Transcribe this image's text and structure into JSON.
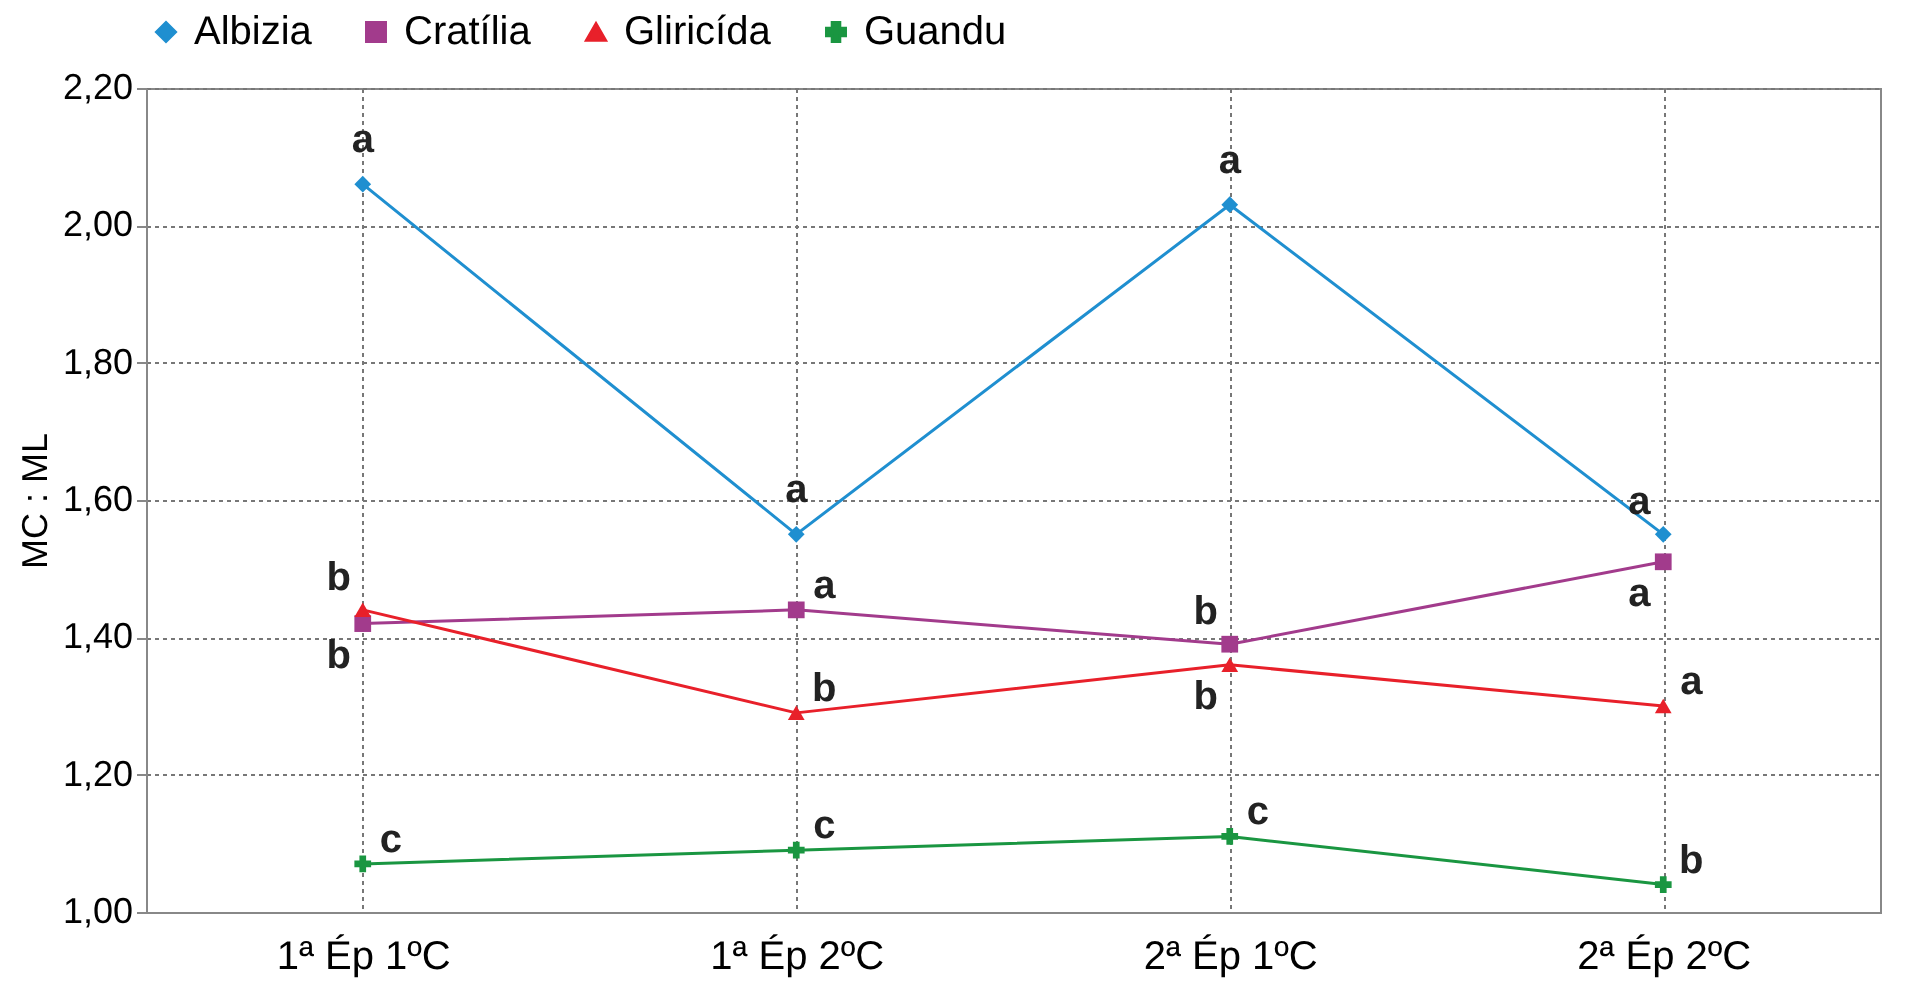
{
  "chart_data": {
    "type": "line",
    "ylabel": "MC : ML",
    "categories": [
      "1ª Ép 1ºC",
      "1ª Ép  2ºC",
      "2ª Ép  1ºC",
      "2ª Ép  2ºC"
    ],
    "series": [
      {
        "name": "Albizia",
        "color": "#1f8fd0",
        "marker": "diamond",
        "values": [
          2.06,
          1.55,
          2.03,
          1.55
        ]
      },
      {
        "name": "Cratília",
        "color": "#a23b8c",
        "marker": "square",
        "values": [
          1.42,
          1.44,
          1.39,
          1.51
        ]
      },
      {
        "name": "Gliricída",
        "color": "#e8202a",
        "marker": "triangle",
        "values": [
          1.44,
          1.29,
          1.36,
          1.3
        ]
      },
      {
        "name": "Guandu",
        "color": "#1a9641",
        "marker": "cross",
        "values": [
          1.07,
          1.09,
          1.11,
          1.04
        ]
      }
    ],
    "ylim": [
      1.0,
      2.2
    ],
    "yticks": [
      {
        "value": 1.0,
        "label": "1,00"
      },
      {
        "value": 1.2,
        "label": "1,20"
      },
      {
        "value": 1.4,
        "label": "1,40"
      },
      {
        "value": 1.6,
        "label": "1,60"
      },
      {
        "value": 1.8,
        "label": "1,80"
      },
      {
        "value": 2.0,
        "label": "2,00"
      },
      {
        "value": 2.2,
        "label": "2,20"
      }
    ],
    "grid": true,
    "legend": "top",
    "annotations": [
      {
        "text": "a",
        "x": "1ª Ép 1ºC",
        "y": 2.06
      },
      {
        "text": "a",
        "x": "1ª Ép  2ºC",
        "y": 1.55
      },
      {
        "text": "a",
        "x": "2ª Ép  1ºC",
        "y": 2.03
      },
      {
        "text": "a",
        "x": "2ª Ép  2ºC",
        "y": 1.55
      },
      {
        "text": "b",
        "x": "1ª Ép 1ºC",
        "y": 1.42
      },
      {
        "text": "a",
        "x": "1ª Ép  2ºC",
        "y": 1.44
      },
      {
        "text": "b",
        "x": "2ª Ép  1ºC",
        "y": 1.39
      },
      {
        "text": "a",
        "x": "2ª Ép  2ºC",
        "y": 1.51
      },
      {
        "text": "b",
        "x": "1ª Ép 1ºC",
        "y": 1.44
      },
      {
        "text": "b",
        "x": "1ª Ép  2ºC",
        "y": 1.29
      },
      {
        "text": "b",
        "x": "2ª Ép  1ºC",
        "y": 1.36
      },
      {
        "text": "a",
        "x": "2ª Ép  2ºC",
        "y": 1.3
      },
      {
        "text": "c",
        "x": "1ª Ép 1ºC",
        "y": 1.07
      },
      {
        "text": "c",
        "x": "1ª Ép  2ºC",
        "y": 1.09
      },
      {
        "text": "c",
        "x": "2ª Ép  1ºC",
        "y": 1.11
      },
      {
        "text": "b",
        "x": "2ª Ép  2ºC",
        "y": 1.04
      }
    ]
  }
}
